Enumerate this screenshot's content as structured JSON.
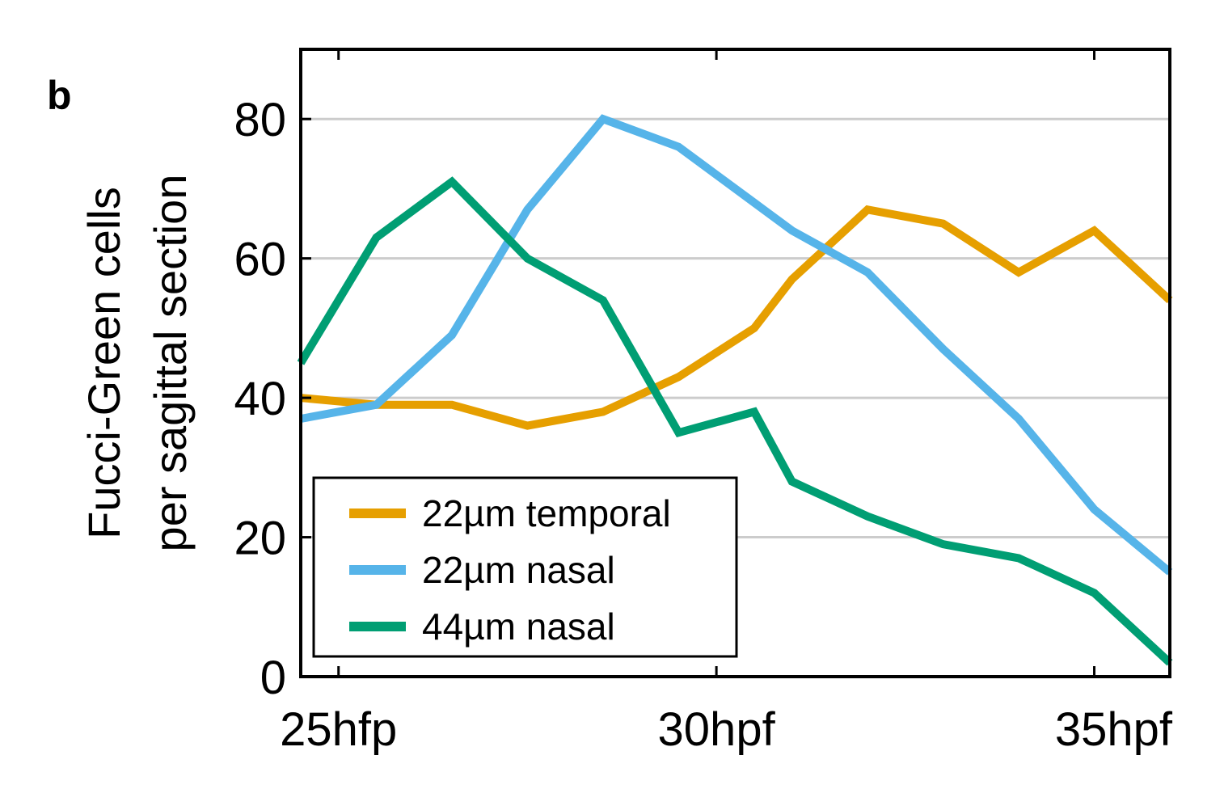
{
  "panel_letter": "b",
  "chart_data": {
    "type": "line",
    "title": "",
    "ylabel_lines": [
      "Fucci-Green cells",
      "per sagittal section"
    ],
    "xlabel": "",
    "xlim": [
      24.5,
      36
    ],
    "ylim": [
      0,
      90
    ],
    "yticks": [
      0,
      20,
      40,
      60,
      80
    ],
    "xticks": [
      {
        "value": 25,
        "label": "25hfp"
      },
      {
        "value": 30,
        "label": "30hpf"
      },
      {
        "value": 35,
        "label": "35hpf"
      }
    ],
    "grid": {
      "y": true,
      "x": false
    },
    "legend_position": "bottom-left",
    "series": [
      {
        "name": "22µm temporal",
        "color": "#E69F00",
        "x": [
          24.5,
          25.5,
          26.5,
          27.5,
          28.5,
          29.5,
          30.5,
          31.0,
          32.0,
          33.0,
          34.0,
          35.0,
          36.0
        ],
        "y": [
          40,
          39,
          39,
          36,
          38,
          43,
          50,
          57,
          67,
          65,
          58,
          64,
          54
        ]
      },
      {
        "name": "22µm nasal",
        "color": "#56B4E9",
        "x": [
          24.5,
          25.5,
          26.5,
          27.5,
          28.5,
          29.5,
          30.5,
          31.0,
          32.0,
          33.0,
          34.0,
          35.0,
          36.0
        ],
        "y": [
          37,
          39,
          49,
          67,
          80,
          76,
          68,
          64,
          58,
          47,
          37,
          24,
          15
        ]
      },
      {
        "name": "44µm nasal",
        "color": "#009E73",
        "x": [
          24.5,
          25.5,
          26.5,
          27.5,
          28.5,
          29.5,
          30.5,
          31.0,
          32.0,
          33.0,
          34.0,
          35.0,
          36.0
        ],
        "y": [
          45,
          63,
          71,
          60,
          54,
          35,
          38,
          28,
          23,
          19,
          17,
          12,
          2
        ]
      }
    ]
  }
}
